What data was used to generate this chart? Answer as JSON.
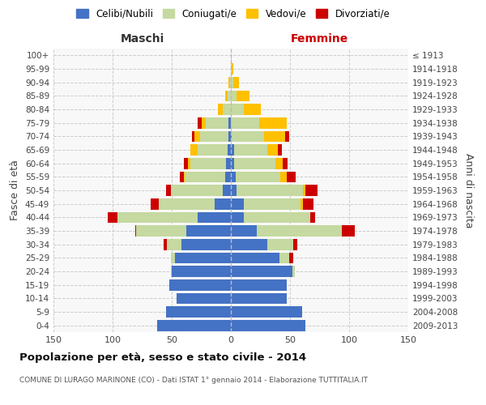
{
  "age_groups": [
    "0-4",
    "5-9",
    "10-14",
    "15-19",
    "20-24",
    "25-29",
    "30-34",
    "35-39",
    "40-44",
    "45-49",
    "50-54",
    "55-59",
    "60-64",
    "65-69",
    "70-74",
    "75-79",
    "80-84",
    "85-89",
    "90-94",
    "95-99",
    "100+"
  ],
  "birth_years": [
    "2009-2013",
    "2004-2008",
    "1999-2003",
    "1994-1998",
    "1989-1993",
    "1984-1988",
    "1979-1983",
    "1974-1978",
    "1969-1973",
    "1964-1968",
    "1959-1963",
    "1954-1958",
    "1949-1953",
    "1944-1948",
    "1939-1943",
    "1934-1938",
    "1929-1933",
    "1924-1928",
    "1919-1923",
    "1914-1918",
    "≤ 1913"
  ],
  "maschi": {
    "celibi": [
      62,
      55,
      46,
      52,
      50,
      47,
      42,
      38,
      28,
      14,
      7,
      5,
      4,
      3,
      2,
      2,
      0,
      0,
      0,
      0,
      0
    ],
    "coniugati": [
      0,
      0,
      0,
      0,
      1,
      4,
      12,
      42,
      68,
      47,
      44,
      34,
      30,
      25,
      24,
      19,
      7,
      3,
      1,
      0,
      0
    ],
    "vedovi": [
      0,
      0,
      0,
      0,
      0,
      0,
      0,
      0,
      0,
      0,
      0,
      1,
      2,
      6,
      5,
      4,
      4,
      2,
      1,
      0,
      0
    ],
    "divorziati": [
      0,
      0,
      0,
      0,
      0,
      0,
      3,
      1,
      8,
      7,
      4,
      3,
      4,
      0,
      2,
      3,
      0,
      0,
      0,
      0,
      0
    ]
  },
  "femmine": {
    "nubili": [
      63,
      60,
      47,
      47,
      52,
      41,
      31,
      22,
      11,
      11,
      5,
      4,
      3,
      3,
      1,
      0,
      0,
      0,
      0,
      0,
      0
    ],
    "coniugate": [
      0,
      0,
      0,
      0,
      2,
      8,
      22,
      72,
      56,
      48,
      56,
      38,
      35,
      28,
      27,
      24,
      11,
      5,
      2,
      1,
      0
    ],
    "vedove": [
      0,
      0,
      0,
      0,
      0,
      0,
      0,
      0,
      0,
      2,
      2,
      5,
      6,
      9,
      18,
      23,
      14,
      11,
      5,
      1,
      0
    ],
    "divorziate": [
      0,
      0,
      0,
      0,
      0,
      4,
      3,
      11,
      4,
      9,
      10,
      8,
      4,
      3,
      3,
      0,
      0,
      0,
      0,
      0,
      0
    ]
  },
  "colors": {
    "celibi": "#4472c4",
    "coniugati": "#c5d9a0",
    "vedovi": "#ffc000",
    "divorziati": "#cc0000"
  },
  "xlim": 150,
  "title": "Popolazione per età, sesso e stato civile - 2014",
  "subtitle": "COMUNE DI LURAGO MARINONE (CO) - Dati ISTAT 1° gennaio 2014 - Elaborazione TUTTITALIA.IT",
  "xlabel_left": "Maschi",
  "xlabel_right": "Femmine",
  "ylabel_left": "Fasce di età",
  "ylabel_right": "Anni di nascita",
  "legend_labels": [
    "Celibi/Nubili",
    "Coniugati/e",
    "Vedovi/e",
    "Divorziati/e"
  ],
  "bg_color": "#ffffff"
}
